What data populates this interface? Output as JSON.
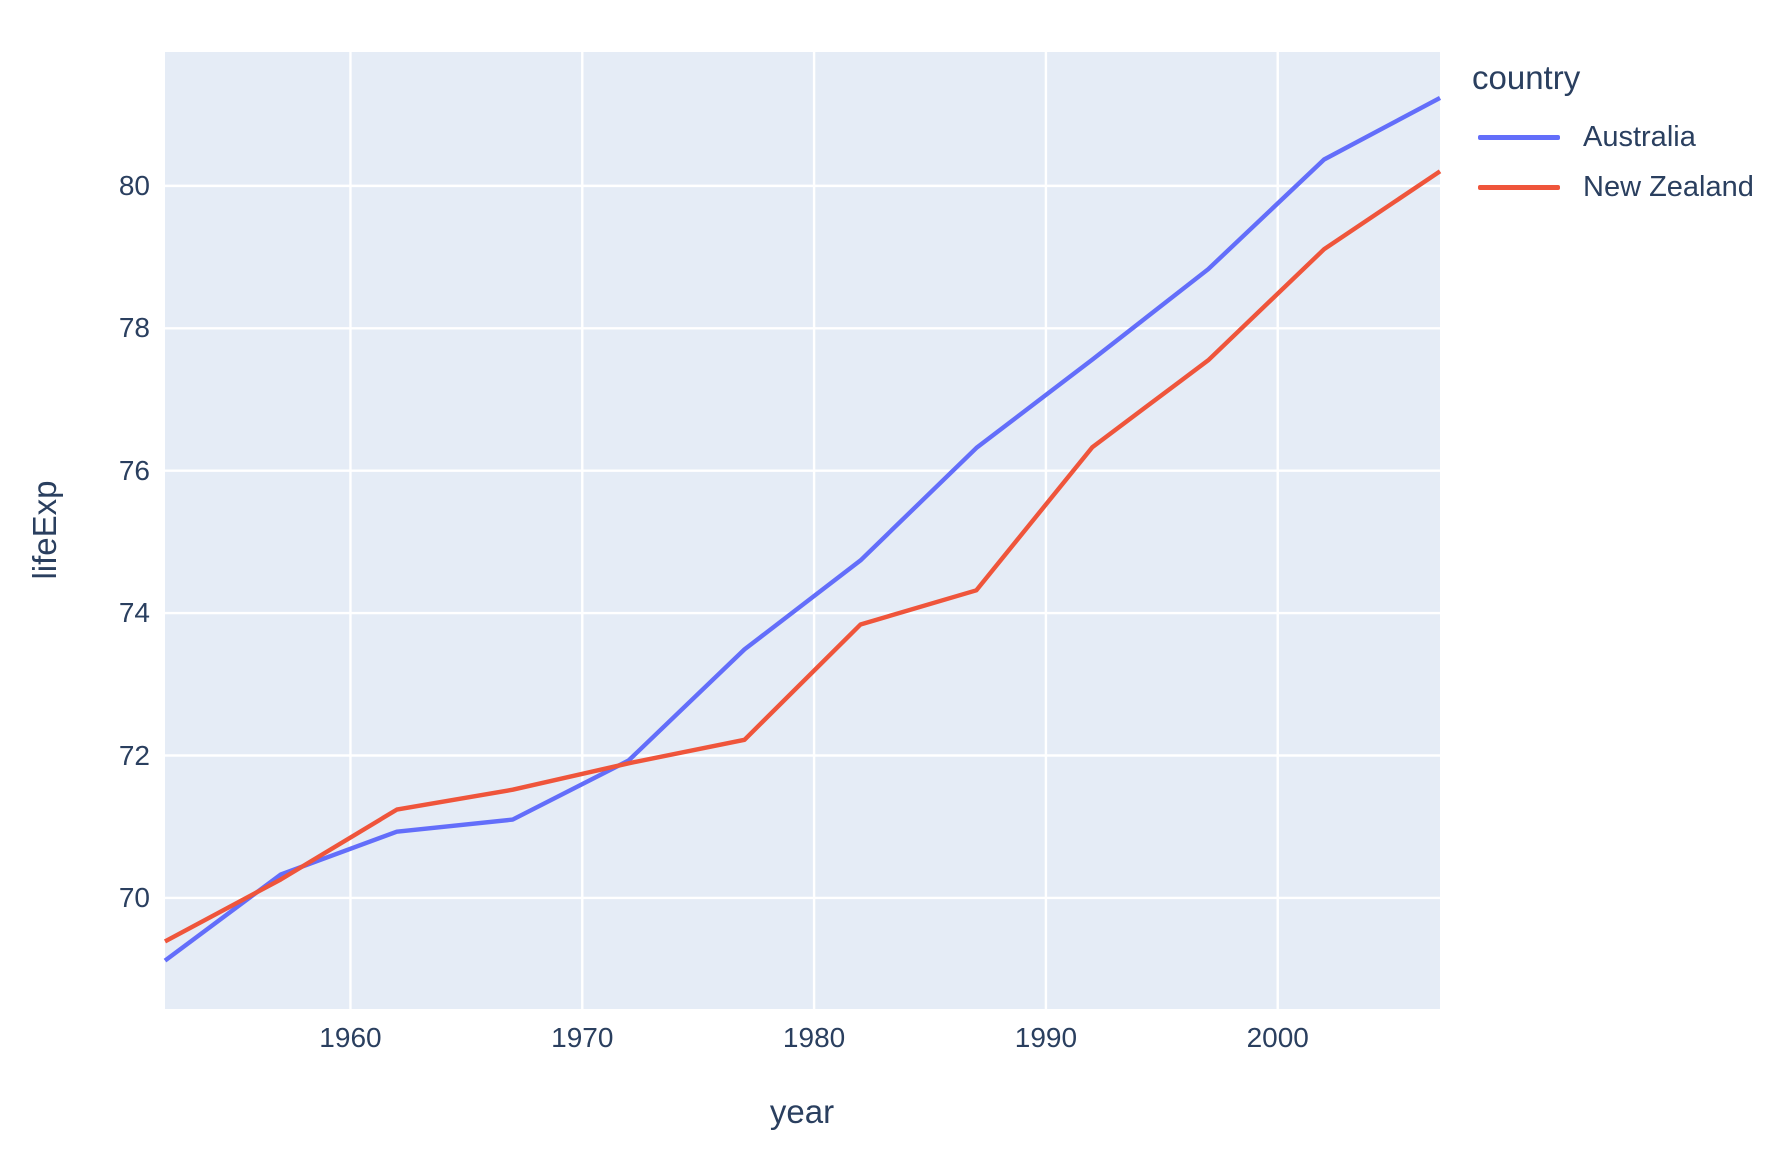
{
  "chart_data": {
    "type": "line",
    "title": "",
    "xlabel": "year",
    "ylabel": "lifeExp",
    "legend_title": "country",
    "legend_position": "right",
    "grid": true,
    "xlim": [
      1952,
      2007
    ],
    "ylim": [
      68.44,
      81.88
    ],
    "xticks": [
      1960,
      1970,
      1980,
      1990,
      2000
    ],
    "yticks": [
      70,
      72,
      74,
      76,
      78,
      80
    ],
    "x": [
      1952,
      1957,
      1962,
      1967,
      1972,
      1977,
      1982,
      1987,
      1992,
      1997,
      2002,
      2007
    ],
    "series": [
      {
        "name": "Australia",
        "color": "#636EFA",
        "values": [
          69.12,
          70.33,
          70.93,
          71.1,
          71.93,
          73.49,
          74.74,
          76.32,
          77.56,
          78.83,
          80.37,
          81.235
        ]
      },
      {
        "name": "New Zealand",
        "color": "#EF553B",
        "values": [
          69.39,
          70.26,
          71.24,
          71.52,
          71.89,
          72.22,
          73.84,
          74.32,
          76.33,
          77.55,
          79.11,
          80.204
        ]
      }
    ],
    "colors": {
      "plot_background": "#E5ECF6",
      "grid": "#FFFFFF",
      "text": "#2A3F5F"
    }
  }
}
